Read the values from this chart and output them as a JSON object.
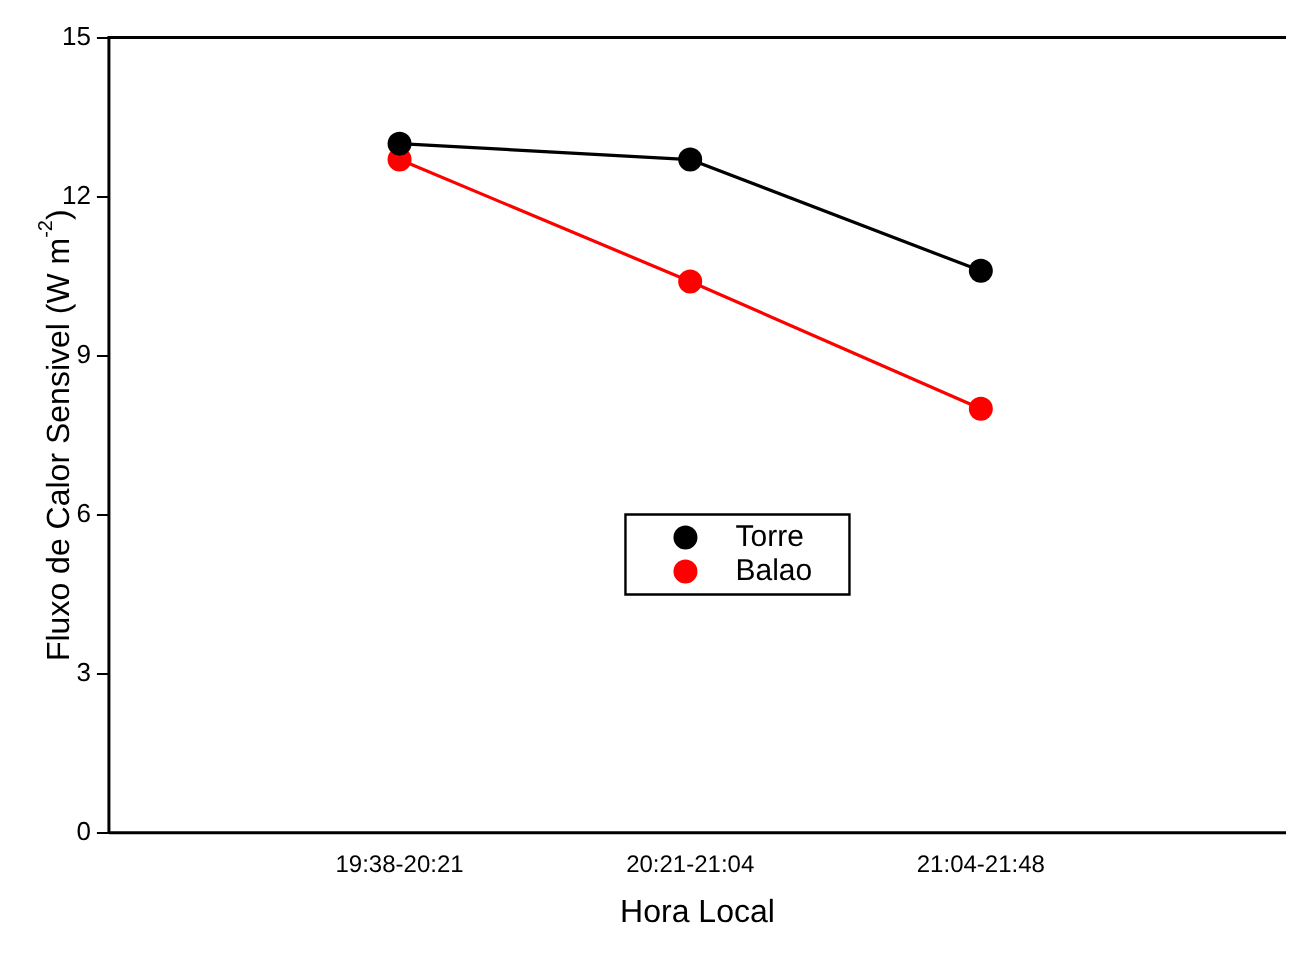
{
  "chart_data": {
    "type": "line",
    "xlabel": "Hora Local",
    "ylabel": "Fluxo de Calor Sensivel (W m$^{-2}$)",
    "categories": [
      "19:38-20:21",
      "20:21-21:04",
      "21:04-21:48"
    ],
    "series": [
      {
        "name": "Torre",
        "color": "#000000",
        "values": [
          13.0,
          12.7,
          10.6
        ]
      },
      {
        "name": "Balao",
        "color": "#ff0000",
        "values": [
          12.7,
          10.4,
          8.0
        ]
      }
    ],
    "ylim": [
      0,
      15
    ],
    "yticks": [
      0,
      3,
      6,
      9,
      12,
      15
    ],
    "grid": false,
    "legend": "center",
    "marker": "circle",
    "line_style": "solid"
  }
}
